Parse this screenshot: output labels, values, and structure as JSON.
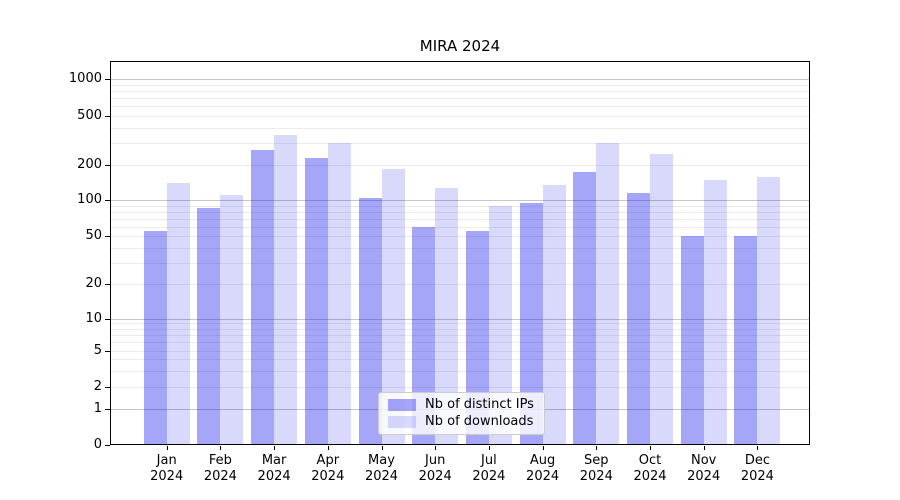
{
  "figure": {
    "title": "MIRA 2024"
  },
  "chart_data": {
    "type": "bar",
    "title": "MIRA 2024",
    "yscale": "symlog",
    "grid": "horizontal major+minor log gridlines",
    "legend_position": "lower-center",
    "year": "2024",
    "categories": [
      "Jan",
      "Feb",
      "Mar",
      "Apr",
      "May",
      "Jun",
      "Jul",
      "Aug",
      "Sep",
      "Oct",
      "Nov",
      "Dec"
    ],
    "yticks": [
      0,
      1,
      2,
      5,
      10,
      20,
      50,
      100,
      200,
      500,
      1000
    ],
    "ylim": [
      0,
      1300
    ],
    "series": [
      {
        "name": "Nb of distinct IPs",
        "color": "#0000ee",
        "fill_alpha": 0.35,
        "values": [
          55,
          85,
          265,
          230,
          105,
          60,
          55,
          95,
          175,
          115,
          50,
          50
        ]
      },
      {
        "name": "Nb of downloads",
        "color": "#0000ee",
        "fill_alpha": 0.15,
        "values": [
          140,
          110,
          350,
          300,
          185,
          128,
          90,
          135,
          300,
          245,
          148,
          158
        ]
      }
    ]
  }
}
